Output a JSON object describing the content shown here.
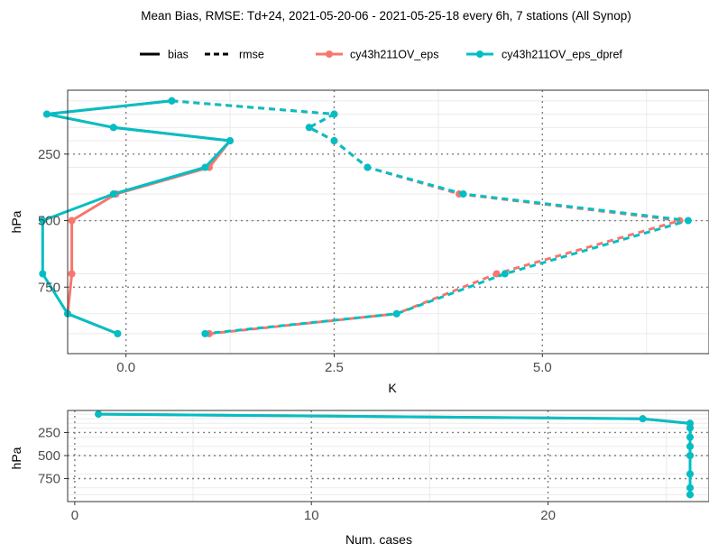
{
  "chart_data": [
    {
      "type": "line",
      "title": "Mean Bias, RMSE: Td+24, 2021-05-20-06 - 2021-05-25-18 every 6h, 7 stations (All Synop)",
      "xlabel": "K",
      "ylabel": "hPa",
      "xlim": [
        -0.7,
        7.0
      ],
      "ylim": [
        1000,
        10
      ],
      "y_reversed": true,
      "grid": true,
      "x_ticks": [
        {
          "value": 0,
          "label": "0.0"
        },
        {
          "value": 2.5,
          "label": "2.5"
        },
        {
          "value": 5,
          "label": "5.0"
        }
      ],
      "y_ticks": [
        {
          "value": 250,
          "label": "250"
        },
        {
          "value": 500,
          "label": "500"
        },
        {
          "value": 750,
          "label": "750"
        }
      ],
      "legend": {
        "placement": "top",
        "linetype_entries": [
          {
            "label": "bias",
            "style": "solid"
          },
          {
            "label": "rmse",
            "style": "dashed"
          }
        ],
        "color_entries": [
          {
            "label": "cy43h211OV_eps",
            "color": "#F8766D"
          },
          {
            "label": "cy43h211OV_eps_dpref",
            "color": "#00BFC4"
          }
        ]
      },
      "levels": [
        50,
        100,
        150,
        200,
        300,
        400,
        500,
        700,
        850,
        925
      ],
      "series": [
        {
          "name": "cy43h211OV_eps",
          "metric": "bias",
          "color": "#F8766D",
          "values": [
            0.55,
            -0.95,
            -0.15,
            1.25,
            1.0,
            -0.12,
            -0.65,
            -0.65,
            -0.7,
            -0.1
          ]
        },
        {
          "name": "cy43h211OV_eps_dpref",
          "metric": "bias",
          "color": "#00BFC4",
          "values": [
            0.55,
            -0.95,
            -0.15,
            1.25,
            0.95,
            -0.15,
            -1.0,
            -1.0,
            -0.7,
            -0.1
          ]
        },
        {
          "name": "cy43h211OV_eps",
          "metric": "rmse",
          "color": "#F8766D",
          "values": [
            0.55,
            2.5,
            2.2,
            2.5,
            2.9,
            4.0,
            6.65,
            4.45,
            3.25,
            1.0
          ]
        },
        {
          "name": "cy43h211OV_eps_dpref",
          "metric": "rmse",
          "color": "#00BFC4",
          "values": [
            0.55,
            2.5,
            2.2,
            2.5,
            2.9,
            4.05,
            6.75,
            4.55,
            3.25,
            0.95
          ]
        }
      ]
    },
    {
      "type": "line",
      "xlabel": "Num. cases",
      "ylabel": "hPa",
      "xlim": [
        -0.3,
        26.8
      ],
      "ylim": [
        1000,
        10
      ],
      "y_reversed": true,
      "grid": true,
      "x_ticks": [
        {
          "value": 0,
          "label": "0"
        },
        {
          "value": 10,
          "label": "10"
        },
        {
          "value": 20,
          "label": "20"
        }
      ],
      "y_ticks": [
        {
          "value": 250,
          "label": "250"
        },
        {
          "value": 500,
          "label": "500"
        },
        {
          "value": 750,
          "label": "750"
        }
      ],
      "levels": [
        50,
        100,
        150,
        200,
        300,
        400,
        500,
        700,
        850,
        925
      ],
      "series": [
        {
          "name": "cy43h211OV_eps",
          "color": "#F8766D",
          "values": [
            1,
            24,
            26,
            26,
            26,
            26,
            26,
            26,
            26,
            26
          ]
        },
        {
          "name": "cy43h211OV_eps_dpref",
          "color": "#00BFC4",
          "values": [
            1,
            24,
            26,
            26,
            26,
            26,
            26,
            26,
            26,
            26
          ]
        }
      ]
    }
  ]
}
